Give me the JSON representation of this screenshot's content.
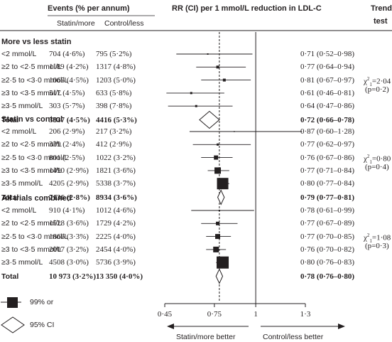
{
  "headers": {
    "events": "Events (% per annum)",
    "statin_more": "Statin/more",
    "control_less": "Control/less",
    "rr": "RR (CI) per 1 mmol/L reduction in LDL-C",
    "trend1": "Trend",
    "trend2": "test"
  },
  "groups": [
    {
      "title": "More vs less statin",
      "rows": [
        {
          "label": "<2 mmol/L",
          "ev1": "704 (4·6%)",
          "ev2": "795 (5·2%)",
          "rr_text": "0·71 (0·52–0·98)",
          "rr": 0.71,
          "lo": 0.52,
          "hi": 0.98,
          "size": 2
        },
        {
          "label": "≥2 to <2·5 mmol/L",
          "ev1": "1189 (4·2%)",
          "ev2": "1317 (4·8%)",
          "rr_text": "0·77 (0·64–0·94)",
          "rr": 0.77,
          "lo": 0.64,
          "hi": 0.94,
          "size": 4
        },
        {
          "label": "≥2·5 to <3·0 mmol/L",
          "ev1": "1065 (4·5%)",
          "ev2": "1203 (5·0%)",
          "rr_text": "0·81 (0·67–0·97)",
          "rr": 0.81,
          "lo": 0.67,
          "hi": 0.97,
          "size": 4
        },
        {
          "label": "≥3 to <3·5 mmol/L",
          "ev1": "517 (4·5%)",
          "ev2": "633 (5·8%)",
          "rr_text": "0·61 (0·46–0·81)",
          "rr": 0.61,
          "lo": 0.46,
          "hi": 0.81,
          "size": 3
        },
        {
          "label": "≥3·5 mmol/L",
          "ev1": "303 (5·7%)",
          "ev2": "398 (7·8%)",
          "rr_text": "0·64 (0·47–0·86)",
          "rr": 0.64,
          "lo": 0.47,
          "hi": 0.86,
          "size": 3
        }
      ],
      "total": {
        "label": "Total",
        "ev1": "3837 (4·5%)",
        "ev2": "4416 (5·3%)",
        "rr_text": "0·72 (0·66–0·78)",
        "rr": 0.72,
        "lo": 0.66,
        "hi": 0.78
      },
      "trend": {
        "stat": "χ",
        "sub": "1",
        "sup": "2",
        "value": "=2·04",
        "p": "(p=0·2)"
      }
    },
    {
      "title": "Statin vs control",
      "rows": [
        {
          "label": "<2 mmol/L",
          "ev1": "206 (2·9%)",
          "ev2": "217 (3·2%)",
          "rr_text": "0·87 (0·60–1·28)",
          "rr": 0.87,
          "lo": 0.6,
          "hi": 1.28,
          "size": 1.5
        },
        {
          "label": "≥2 to <2·5 mmol/L",
          "ev1": "339 (2·4%)",
          "ev2": "412 (2·9%)",
          "rr_text": "0·77 (0·62–0·97)",
          "rr": 0.77,
          "lo": 0.62,
          "hi": 0.97,
          "size": 3
        },
        {
          "label": "≥2·5 to <3·0 mmol/L",
          "ev1": "801 (2·5%)",
          "ev2": "1022 (3·2%)",
          "rr_text": "0·76 (0·67–0·86)",
          "rr": 0.76,
          "lo": 0.67,
          "hi": 0.86,
          "size": 6
        },
        {
          "label": "≥3 to <3·5 mmol/L",
          "ev1": "1490 (2·9%)",
          "ev2": "1821 (3·6%)",
          "rr_text": "0·77 (0·71–0·84)",
          "rr": 0.77,
          "lo": 0.71,
          "hi": 0.84,
          "size": 9
        },
        {
          "label": "≥3·5 mmol/L",
          "ev1": "4205 (2·9%)",
          "ev2": "5338 (3·7%)",
          "rr_text": "0·80 (0·77–0·84)",
          "rr": 0.8,
          "lo": 0.77,
          "hi": 0.84,
          "size": 16
        }
      ],
      "total": {
        "label": "Total",
        "ev1": "7136 (2·8%)",
        "ev2": "8934 (3·6%)",
        "rr_text": "0·79 (0·77–0·81)",
        "rr": 0.79,
        "lo": 0.77,
        "hi": 0.81
      },
      "trend": {
        "stat": "χ",
        "sub": "1",
        "sup": "2",
        "value": "=0·80",
        "p": "(p=0·4)"
      }
    },
    {
      "title": "All trials combined",
      "rows": [
        {
          "label": "<2 mmol/L",
          "ev1": "910 (4·1%)",
          "ev2": "1012 (4·6%)",
          "rr_text": "0·78 (0·61–0·99)",
          "rr": 0.78,
          "lo": 0.61,
          "hi": 0.99,
          "size": 2
        },
        {
          "label": "≥2 to <2·5 mmol/L",
          "ev1": "1528 (3·6%)",
          "ev2": "1729 (4·2%)",
          "rr_text": "0·77 (0·67–0·89)",
          "rr": 0.77,
          "lo": 0.67,
          "hi": 0.89,
          "size": 5
        },
        {
          "label": "≥2·5 to <3·0 mmol/L",
          "ev1": "1866 (3·3%)",
          "ev2": "2225 (4·0%)",
          "rr_text": "0·77 (0·70–0·85)",
          "rr": 0.77,
          "lo": 0.7,
          "hi": 0.85,
          "size": 7
        },
        {
          "label": "≥3 to <3·5 mmol/L",
          "ev1": "2007 (3·2%)",
          "ev2": "2454 (4·0%)",
          "rr_text": "0·76 (0·70–0·82)",
          "rr": 0.76,
          "lo": 0.7,
          "hi": 0.82,
          "size": 8
        },
        {
          "label": "≥3·5 mmol/L",
          "ev1": "4508 (3·0%)",
          "ev2": "5736 (3·9%)",
          "rr_text": "0·80 (0·76–0·83)",
          "rr": 0.8,
          "lo": 0.76,
          "hi": 0.83,
          "size": 17
        }
      ],
      "total": {
        "label": "Total",
        "ev1": "10 973 (3·2%)",
        "ev2": "13 350 (4·0%)",
        "rr_text": "0·78 (0·76–0·80)",
        "rr": 0.78,
        "lo": 0.76,
        "hi": 0.8
      },
      "trend": {
        "stat": "χ",
        "sub": "1",
        "sup": "2",
        "value": "=1·08",
        "p": "(p=0·3)"
      }
    }
  ],
  "axis": {
    "ticks": [
      0.45,
      0.75,
      1,
      1.3
    ],
    "tick_labels": [
      "0·45",
      "0·75",
      "1",
      "1·3"
    ],
    "min": 0.45,
    "max": 1.3,
    "reference": 1,
    "overall": 0.78
  },
  "directions": {
    "left": "Statin/more better",
    "right": "Control/less better"
  },
  "legend": {
    "box": "99% or",
    "diamond": "95% CI"
  },
  "colors": {
    "ink": "#231f20"
  }
}
